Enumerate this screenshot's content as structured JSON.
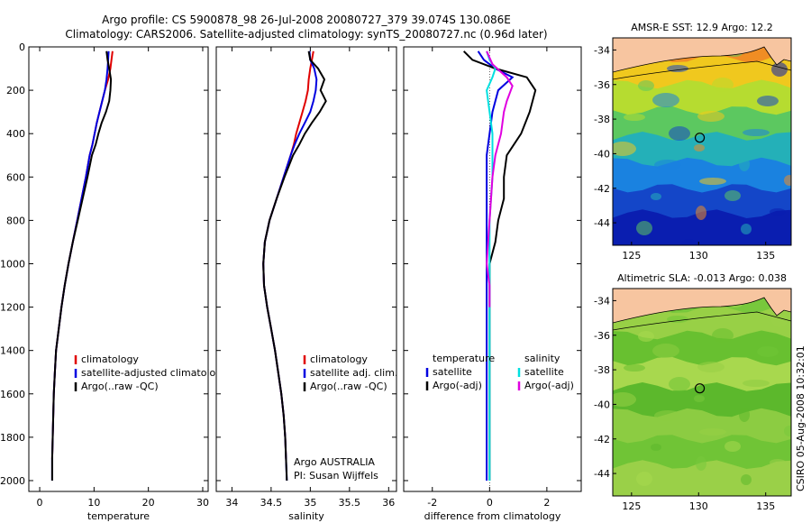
{
  "header": {
    "line1": "Argo profile: CS 5900878_98 26-Jul-2008 20080727_379 39.074S 130.086E",
    "line2": "Climatology: CARS2006. Satellite-adjusted climatology: synTS_20080727.nc (0.96d later)"
  },
  "side_credit": "CSIRO 05-Aug-2008 10:32:01",
  "colors": {
    "climatology": "#e00000",
    "satellite": "#0000e0",
    "argo": "#000000",
    "salinity_sat": "#00e0e0",
    "salinity_argo": "#e000e0"
  },
  "chart_data": [
    {
      "type": "line",
      "xlabel": "temperature",
      "xlim": [
        -2,
        31
      ],
      "xticks": [
        "0",
        "10",
        "20",
        "30"
      ],
      "ylim": [
        0,
        2050
      ],
      "yticks": [
        "0",
        "200",
        "400",
        "600",
        "800",
        "1000",
        "1200",
        "1400",
        "1600",
        "1800",
        "2000"
      ],
      "legend": [
        "climatology",
        "satellite-adjusted climatology",
        "Argo(..raw -QC)"
      ],
      "series": [
        {
          "name": "climatology",
          "color": "#e00000",
          "x": [
            13.4,
            13.2,
            13.0,
            12.6,
            12.0,
            11.5,
            11.0,
            10.5,
            10.1,
            9.7,
            9.2,
            8.5,
            7.7,
            6.9,
            6.1,
            5.3,
            4.6,
            4.0,
            3.5,
            3.0,
            2.8,
            2.6,
            2.5,
            2.4,
            2.3
          ],
          "y": [
            20,
            60,
            100,
            150,
            200,
            250,
            300,
            350,
            400,
            450,
            500,
            600,
            700,
            800,
            900,
            1000,
            1100,
            1200,
            1300,
            1400,
            1500,
            1600,
            1700,
            1800,
            1900
          ]
        },
        {
          "name": "satellite-adjusted climatology",
          "color": "#0000e0",
          "x": [
            12.7,
            12.6,
            12.5,
            12.3,
            12.0,
            11.5,
            11.0,
            10.5,
            10.1,
            9.7,
            9.2,
            8.5,
            7.7,
            6.9,
            6.1,
            5.3,
            4.6,
            4.0,
            3.5,
            3.0,
            2.8,
            2.6,
            2.5,
            2.4,
            2.3,
            2.3
          ],
          "y": [
            20,
            60,
            100,
            150,
            200,
            250,
            300,
            350,
            400,
            450,
            500,
            600,
            700,
            800,
            900,
            1000,
            1100,
            1200,
            1300,
            1400,
            1500,
            1600,
            1700,
            1800,
            1900,
            2000
          ]
        },
        {
          "name": "Argo(..raw -QC)",
          "color": "#000000",
          "x": [
            12.3,
            12.5,
            12.8,
            13.1,
            13.0,
            12.8,
            12.2,
            11.4,
            10.8,
            10.3,
            9.6,
            8.8,
            7.9,
            7.0,
            6.1,
            5.3,
            4.6,
            4.0,
            3.5,
            3.0,
            2.8,
            2.6,
            2.5,
            2.4,
            2.3,
            2.3
          ],
          "y": [
            20,
            60,
            100,
            150,
            200,
            250,
            300,
            350,
            400,
            450,
            500,
            600,
            700,
            800,
            900,
            1000,
            1100,
            1200,
            1300,
            1400,
            1500,
            1600,
            1700,
            1800,
            1900,
            2000
          ]
        }
      ]
    },
    {
      "type": "line",
      "xlabel": "salinity",
      "xlim": [
        33.8,
        36.1
      ],
      "xticks": [
        "34",
        "34.5",
        "35",
        "35.5",
        "36"
      ],
      "ylim": [
        0,
        2050
      ],
      "legend": [
        "climatology",
        "satellite adj. clim.",
        "Argo(..raw -QC)"
      ],
      "annotation": [
        "Argo AUSTRALIA",
        "PI: Susan Wijffels"
      ],
      "series": [
        {
          "name": "climatology",
          "color": "#e00000",
          "x": [
            35.04,
            35.02,
            35.0,
            34.98,
            34.97,
            34.94,
            34.9,
            34.86,
            34.82,
            34.79,
            34.75,
            34.66,
            34.57,
            34.48,
            34.42,
            34.4,
            34.41,
            34.45,
            34.5,
            34.55,
            34.59,
            34.63,
            34.66,
            34.68,
            34.69
          ],
          "y": [
            20,
            60,
            100,
            150,
            200,
            250,
            300,
            350,
            400,
            450,
            500,
            600,
            700,
            800,
            900,
            1000,
            1100,
            1200,
            1300,
            1400,
            1500,
            1600,
            1700,
            1800,
            1900
          ]
        },
        {
          "name": "satellite adj. clim.",
          "color": "#0000e0",
          "x": [
            34.99,
            35.0,
            35.05,
            35.08,
            35.07,
            35.04,
            35.0,
            34.93,
            34.86,
            34.8,
            34.75,
            34.66,
            34.57,
            34.48,
            34.42,
            34.4,
            34.41,
            34.45,
            34.5,
            34.55,
            34.59,
            34.63,
            34.66,
            34.68,
            34.69,
            34.7
          ],
          "y": [
            20,
            60,
            100,
            150,
            200,
            250,
            300,
            350,
            400,
            450,
            500,
            600,
            700,
            800,
            900,
            1000,
            1100,
            1200,
            1300,
            1400,
            1500,
            1600,
            1700,
            1800,
            1900,
            2000
          ]
        },
        {
          "name": "Argo(..raw -QC)",
          "color": "#000000",
          "x": [
            34.98,
            35.0,
            35.1,
            35.18,
            35.13,
            35.2,
            35.12,
            35.02,
            34.93,
            34.86,
            34.78,
            34.67,
            34.57,
            34.48,
            34.42,
            34.4,
            34.41,
            34.45,
            34.5,
            34.55,
            34.59,
            34.63,
            34.66,
            34.68,
            34.69,
            34.7
          ],
          "y": [
            20,
            60,
            100,
            150,
            200,
            250,
            300,
            350,
            400,
            450,
            500,
            600,
            700,
            800,
            900,
            1000,
            1100,
            1200,
            1300,
            1400,
            1500,
            1600,
            1700,
            1800,
            1900,
            2000
          ]
        }
      ]
    },
    {
      "type": "line",
      "xlabel": "difference from climatology",
      "xlim": [
        -3,
        3.2
      ],
      "xticks": [
        "-2",
        "0",
        "2"
      ],
      "ylim": [
        0,
        2050
      ],
      "legend_headers": [
        "temperature",
        "salinity"
      ],
      "legend": [
        "satellite",
        "Argo(-adj)",
        "satellite",
        "Argo(-adj)"
      ],
      "series": [
        {
          "name": "temperature satellite",
          "color": "#0000e0",
          "x": [
            -0.4,
            -0.2,
            0.2,
            0.8,
            0.3,
            0.1,
            0.0,
            -0.1,
            -0.1,
            -0.1,
            -0.1,
            -0.1,
            -0.1,
            -0.1,
            -0.1,
            -0.1,
            -0.1,
            -0.1,
            -0.1
          ],
          "y": [
            20,
            60,
            100,
            140,
            200,
            300,
            400,
            500,
            600,
            700,
            800,
            900,
            950,
            1000,
            1100,
            1300,
            1500,
            1700,
            2000
          ]
        },
        {
          "name": "temperature Argo(-adj)",
          "color": "#000000",
          "x": [
            -0.9,
            -0.6,
            0.2,
            1.3,
            1.6,
            1.4,
            1.1,
            0.6,
            0.5,
            0.5,
            0.3,
            0.2,
            0.1,
            0.0,
            0.0,
            0.0,
            0.0,
            0.0
          ],
          "y": [
            20,
            60,
            100,
            140,
            200,
            300,
            400,
            500,
            600,
            700,
            800,
            900,
            950,
            1000,
            1100,
            1300,
            1500,
            2000
          ]
        },
        {
          "name": "salinity satellite",
          "color": "#00e0e0",
          "x": [
            -0.1,
            0.0,
            0.2,
            0.1,
            -0.1,
            0.0,
            0.1,
            0.1,
            0.1,
            0.0,
            0.0,
            0.0,
            0.0,
            0.0,
            0.0
          ],
          "y": [
            20,
            60,
            100,
            140,
            200,
            300,
            400,
            500,
            600,
            800,
            1000,
            1200,
            1500,
            1800,
            2000
          ]
        },
        {
          "name": "salinity Argo(-adj)",
          "color": "#e000e0",
          "x": [
            -0.1,
            0.1,
            0.6,
            0.8,
            0.6,
            0.5,
            0.4,
            0.2,
            0.1,
            0.0,
            -0.1,
            0.0,
            0.0
          ],
          "y": [
            20,
            80,
            140,
            180,
            250,
            300,
            400,
            500,
            600,
            800,
            1000,
            1100,
            1200
          ]
        }
      ]
    }
  ],
  "maps": [
    {
      "title": "AMSR-E SST: 12.9 Argo: 12.2",
      "xticks": [
        "125",
        "130",
        "135"
      ],
      "yticks": [
        "-34",
        "-36",
        "-38",
        "-40",
        "-42",
        "-44"
      ],
      "bands": [
        "#f08d24",
        "#f0c81e",
        "#b6dc30",
        "#5cc860",
        "#24b0b8",
        "#1a82e0",
        "#1446c8",
        "#0a1eb0"
      ]
    },
    {
      "title": "Altimetric SLA: -0.013 Argo: 0.038",
      "xticks": [
        "125",
        "130",
        "135"
      ],
      "yticks": [
        "-34",
        "-36",
        "-38",
        "-40",
        "-42",
        "-44"
      ],
      "bands": [
        "#78c83c",
        "#98d046",
        "#68c030",
        "#a8d84e",
        "#5cb82c",
        "#8ccc42",
        "#70c436",
        "#9ad048"
      ]
    }
  ]
}
